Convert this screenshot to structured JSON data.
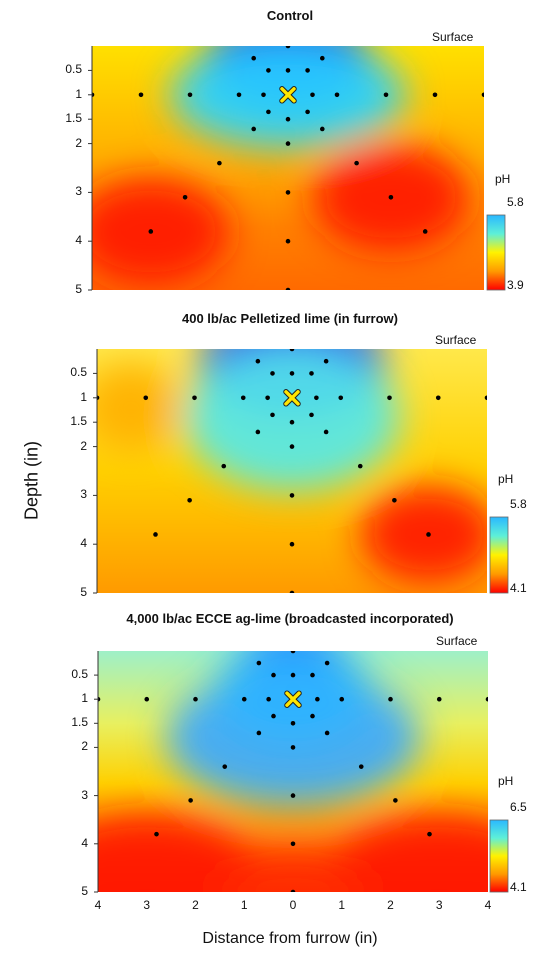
{
  "figure": {
    "ylabel": "Depth (in)",
    "xlabel": "Distance from furrow (in)",
    "surface_label": "Surface",
    "colorbar_title": "pH"
  },
  "chart_data": [
    {
      "type": "heatmap",
      "title": "Control",
      "xlabel": "Distance from furrow (in)",
      "ylabel": "Depth (in)",
      "ytick_labels": [
        "0.5",
        "1",
        "1.5",
        "2",
        "3",
        "4",
        "5"
      ],
      "yticks": [
        0.5,
        1,
        1.5,
        2,
        3,
        4,
        5
      ],
      "xlim": [
        -4,
        4
      ],
      "ylim": [
        0,
        5
      ],
      "colorbar": {
        "label": "pH",
        "min": 3.9,
        "max": 5.8,
        "min_label": "3.9",
        "max_label": "5.8"
      },
      "fertilizer_position": {
        "x": 0,
        "y": 1
      },
      "sample_points": [
        [
          0,
          0
        ],
        [
          -0.7,
          0.25
        ],
        [
          0.7,
          0.25
        ],
        [
          -0.4,
          0.5
        ],
        [
          0,
          0.5
        ],
        [
          0.4,
          0.5
        ],
        [
          -4,
          1
        ],
        [
          -3,
          1
        ],
        [
          -2,
          1
        ],
        [
          -1,
          1
        ],
        [
          -0.5,
          1
        ],
        [
          0.5,
          1
        ],
        [
          1,
          1
        ],
        [
          2,
          1
        ],
        [
          3,
          1
        ],
        [
          4,
          1
        ],
        [
          -0.4,
          1.35
        ],
        [
          0,
          1.5
        ],
        [
          0.4,
          1.35
        ],
        [
          -0.7,
          1.7
        ],
        [
          0,
          2
        ],
        [
          0.7,
          1.7
        ],
        [
          -1.4,
          2.4
        ],
        [
          1.4,
          2.4
        ],
        [
          -2.1,
          3.1
        ],
        [
          0,
          3
        ],
        [
          2.1,
          3.1
        ],
        [
          -2.8,
          3.8
        ],
        [
          0,
          4
        ],
        [
          2.8,
          3.8
        ],
        [
          0,
          5
        ]
      ],
      "zones": [
        {
          "x": 0,
          "y": 0.3,
          "value": 3.9,
          "rx": 1.7,
          "ry": 1.0,
          "color": "#0010ff"
        },
        {
          "x": 0,
          "y": 1.0,
          "value": 4.0,
          "rx": 2.4,
          "ry": 1.1,
          "color": "#28d2ff"
        },
        {
          "x": -2.8,
          "y": 3.8,
          "value": 5.8,
          "rx": 1.6,
          "ry": 1.1,
          "color": "#ff1a00"
        },
        {
          "x": 2.1,
          "y": 3.1,
          "value": 5.8,
          "rx": 1.6,
          "ry": 1.1,
          "color": "#ff1a00"
        }
      ]
    },
    {
      "type": "heatmap",
      "title": "400 lb/ac Pelletized lime (in furrow)",
      "xlabel": "Distance from furrow (in)",
      "ylabel": "Depth (in)",
      "ytick_labels": [
        "0.5",
        "1",
        "1.5",
        "2",
        "3",
        "4",
        "5"
      ],
      "yticks": [
        0.5,
        1,
        1.5,
        2,
        3,
        4,
        5
      ],
      "xlim": [
        -4,
        4
      ],
      "ylim": [
        0,
        5
      ],
      "colorbar": {
        "label": "pH",
        "min": 4.1,
        "max": 5.8,
        "min_label": "4.1",
        "max_label": "5.8"
      },
      "fertilizer_position": {
        "x": 0,
        "y": 1
      },
      "sample_points": [
        [
          0,
          0
        ],
        [
          -0.7,
          0.25
        ],
        [
          0.7,
          0.25
        ],
        [
          -0.4,
          0.5
        ],
        [
          0,
          0.5
        ],
        [
          0.4,
          0.5
        ],
        [
          -4,
          1
        ],
        [
          -3,
          1
        ],
        [
          -2,
          1
        ],
        [
          -1,
          1
        ],
        [
          -0.5,
          1
        ],
        [
          0.5,
          1
        ],
        [
          1,
          1
        ],
        [
          2,
          1
        ],
        [
          3,
          1
        ],
        [
          4,
          1
        ],
        [
          -0.4,
          1.35
        ],
        [
          0,
          1.5
        ],
        [
          0.4,
          1.35
        ],
        [
          -0.7,
          1.7
        ],
        [
          0,
          2
        ],
        [
          0.7,
          1.7
        ],
        [
          -1.4,
          2.4
        ],
        [
          1.4,
          2.4
        ],
        [
          -2.1,
          3.1
        ],
        [
          0,
          3
        ],
        [
          2.1,
          3.1
        ],
        [
          -2.8,
          3.8
        ],
        [
          0,
          4
        ],
        [
          2.8,
          3.8
        ],
        [
          0,
          5
        ]
      ],
      "zones": [
        {
          "x": 0,
          "y": 0.3,
          "value": 4.1,
          "rx": 1.9,
          "ry": 1.1,
          "color": "#0010ff"
        },
        {
          "x": 0,
          "y": 1.4,
          "value": 4.3,
          "rx": 2.2,
          "ry": 1.5,
          "color": "#55e8e8"
        },
        {
          "x": 2.8,
          "y": 3.8,
          "value": 5.8,
          "rx": 1.4,
          "ry": 1.0,
          "color": "#ff1a00"
        },
        {
          "x": -3.3,
          "y": 1.2,
          "value": 5.3,
          "rx": 1.0,
          "ry": 0.9,
          "color": "#ffb000"
        }
      ]
    },
    {
      "type": "heatmap",
      "title": "4,000 lb/ac ECCE ag-lime (broadcasted incorporated)",
      "xlabel": "Distance from furrow (in)",
      "ylabel": "Depth (in)",
      "ytick_labels": [
        "0.5",
        "1",
        "1.5",
        "2",
        "3",
        "4",
        "5"
      ],
      "yticks": [
        0.5,
        1,
        1.5,
        2,
        3,
        4,
        5
      ],
      "xlim": [
        -4,
        4
      ],
      "ylim": [
        0,
        5
      ],
      "xtick_labels": [
        "4",
        "3",
        "2",
        "1",
        "0",
        "1",
        "2",
        "3",
        "4"
      ],
      "xticks": [
        -4,
        -3,
        -2,
        -1,
        0,
        1,
        2,
        3,
        4
      ],
      "colorbar": {
        "label": "pH",
        "min": 4.1,
        "max": 6.5,
        "min_label": "4.1",
        "max_label": "6.5"
      },
      "fertilizer_position": {
        "x": 0,
        "y": 1
      },
      "sample_points": [
        [
          0,
          0
        ],
        [
          -0.7,
          0.25
        ],
        [
          0.7,
          0.25
        ],
        [
          -0.4,
          0.5
        ],
        [
          0,
          0.5
        ],
        [
          0.4,
          0.5
        ],
        [
          -4,
          1
        ],
        [
          -3,
          1
        ],
        [
          -2,
          1
        ],
        [
          -1,
          1
        ],
        [
          -0.5,
          1
        ],
        [
          0.5,
          1
        ],
        [
          1,
          1
        ],
        [
          2,
          1
        ],
        [
          3,
          1
        ],
        [
          4,
          1
        ],
        [
          -0.4,
          1.35
        ],
        [
          0,
          1.5
        ],
        [
          0.4,
          1.35
        ],
        [
          -0.7,
          1.7
        ],
        [
          0,
          2
        ],
        [
          0.7,
          1.7
        ],
        [
          -1.4,
          2.4
        ],
        [
          1.4,
          2.4
        ],
        [
          -2.1,
          3.1
        ],
        [
          0,
          3
        ],
        [
          2.1,
          3.1
        ],
        [
          -2.8,
          3.8
        ],
        [
          0,
          4
        ],
        [
          2.8,
          3.8
        ],
        [
          0,
          5
        ]
      ],
      "zones": [
        {
          "x": 0,
          "y": 0.2,
          "value": 6.5,
          "rx": 1.0,
          "ry": 0.8,
          "color": "#0010ff"
        },
        {
          "x": 0,
          "y": 1.8,
          "value": 6.0,
          "rx": 2.6,
          "ry": 1.4,
          "color": "#3aa8ff"
        },
        {
          "x": 0,
          "y": 0.8,
          "value": 6.2,
          "rx": 1.6,
          "ry": 1.1,
          "color": "#2db4ff"
        },
        {
          "x": -3.0,
          "y": 4.6,
          "value": 4.1,
          "rx": 2.2,
          "ry": 1.2,
          "color": "#ff1a00"
        },
        {
          "x": 3.0,
          "y": 4.6,
          "value": 4.1,
          "rx": 2.2,
          "ry": 1.2,
          "color": "#ff1a00"
        },
        {
          "x": 0,
          "y": 5.0,
          "value": 4.3,
          "rx": 1.6,
          "ry": 0.8,
          "color": "#ff2a00"
        }
      ]
    }
  ]
}
